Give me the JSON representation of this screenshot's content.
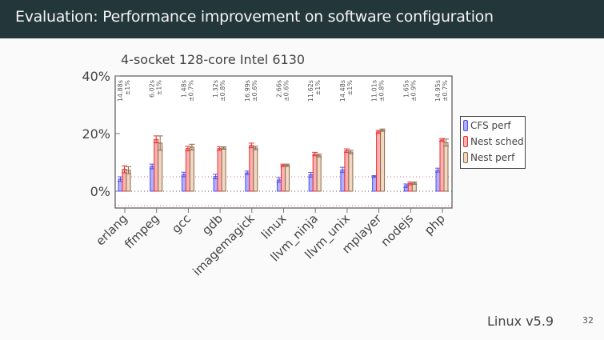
{
  "header": {
    "title": "Evaluation: Performance improvement on software configuration"
  },
  "footer": {
    "text": "Linux v5.9",
    "page_number": "32"
  },
  "chart_data": {
    "type": "bar",
    "title": "4-socket 128-core Intel 6130",
    "xlabel": "",
    "ylabel": "",
    "ylim": [
      -5,
      40
    ],
    "yticks": [
      0,
      20,
      40
    ],
    "ytick_labels": [
      "0%",
      "20%",
      "40%"
    ],
    "reference_lines": [
      5,
      -5
    ],
    "categories": [
      "erlang",
      "ffmpeg",
      "gcc",
      "gdb",
      "imagemagick",
      "linux",
      "llvm_ninja",
      "llvm_unix",
      "mplayer",
      "nodejs",
      "php"
    ],
    "baseline_annotations": [
      {
        "time": "14.88s",
        "stdev": "±1%"
      },
      {
        "time": "6.02s",
        "stdev": "±1%"
      },
      {
        "time": "1.48s",
        "stdev": "±0.7%"
      },
      {
        "time": "1.32s",
        "stdev": "±0.8%"
      },
      {
        "time": "16.99s",
        "stdev": "±0.6%"
      },
      {
        "time": "2.66s",
        "stdev": "±0.6%"
      },
      {
        "time": "11.62s",
        "stdev": "±1%"
      },
      {
        "time": "14.48s",
        "stdev": "±1%"
      },
      {
        "time": "11.01s",
        "stdev": "±0.8%"
      },
      {
        "time": "1.65s",
        "stdev": "±0.9%"
      },
      {
        "time": "14.95s",
        "stdev": "±0.7%"
      }
    ],
    "series": [
      {
        "name": "CFS perf",
        "color": "#5050ee",
        "fill": "#b0b0ff",
        "values": [
          4.2,
          8.6,
          5.8,
          5.1,
          6.4,
          3.9,
          5.7,
          7.4,
          5.1,
          1.9,
          7.3
        ],
        "errors": [
          0.8,
          0.8,
          0.8,
          0.8,
          0.6,
          0.8,
          0.8,
          0.9,
          0.3,
          0.6,
          0.7
        ]
      },
      {
        "name": "Nest sched",
        "color": "#e83030",
        "fill": "#ffb0b0",
        "values": [
          7.6,
          18.0,
          14.8,
          14.8,
          15.9,
          9.0,
          12.9,
          14.1,
          20.6,
          2.7,
          17.8
        ],
        "errors": [
          1.2,
          1.2,
          0.8,
          0.6,
          0.8,
          0.4,
          0.6,
          0.6,
          0.5,
          0.5,
          0.5
        ]
      },
      {
        "name": "Nest perf",
        "color": "#8a6a50",
        "fill": "#f2d8c0",
        "values": [
          7.3,
          16.7,
          15.3,
          15.0,
          15.0,
          9.0,
          12.4,
          13.6,
          21.2,
          2.8,
          16.9
        ],
        "errors": [
          1.2,
          2.5,
          1.0,
          0.4,
          0.6,
          0.4,
          0.5,
          0.6,
          0.4,
          0.4,
          1.2
        ]
      }
    ],
    "legend": {
      "position": "right",
      "entries": [
        "CFS perf",
        "Nest sched",
        "Nest perf"
      ]
    }
  }
}
